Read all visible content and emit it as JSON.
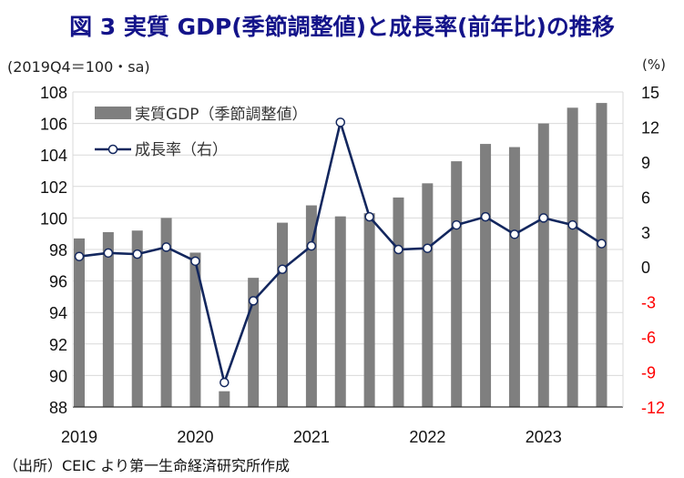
{
  "title": "図 3  実質 GDP(季節調整値)と成長率(前年比)の推移",
  "unit_left": "(2019Q4＝100・sa)",
  "unit_right": "(%)",
  "source": "（出所）CEIC より第一生命経済研究所作成",
  "colors": {
    "bar": "#7f7f7f",
    "line": "#13275e",
    "negative_tick": "#ff0000",
    "title": "#14148a"
  },
  "chart_data": {
    "type": "bar+line",
    "categories": [
      "2019Q1",
      "2019Q2",
      "2019Q3",
      "2019Q4",
      "2020Q1",
      "2020Q2",
      "2020Q3",
      "2020Q4",
      "2021Q1",
      "2021Q2",
      "2021Q3",
      "2021Q4",
      "2022Q1",
      "2022Q2",
      "2022Q3",
      "2022Q4",
      "2023Q1",
      "2023Q2",
      "2023Q3"
    ],
    "x_tick_labels": [
      "2019",
      "2020",
      "2021",
      "2022",
      "2023"
    ],
    "series": [
      {
        "name": "実質GDP（季節調整値）",
        "type": "bar",
        "axis": "left",
        "values": [
          98.7,
          99.1,
          99.2,
          100.0,
          97.8,
          89.0,
          96.2,
          99.7,
          100.8,
          100.1,
          100.3,
          101.3,
          102.2,
          103.6,
          104.7,
          104.5,
          106.0,
          107.0,
          107.3
        ]
      },
      {
        "name": "成長率（右）",
        "type": "line",
        "axis": "right",
        "values": [
          0.9,
          1.2,
          1.1,
          1.7,
          0.5,
          -9.9,
          -2.9,
          -0.2,
          1.8,
          12.4,
          4.3,
          1.5,
          1.6,
          3.6,
          4.3,
          2.8,
          4.2,
          3.6,
          2.0
        ]
      }
    ],
    "ylim_left": [
      88,
      108
    ],
    "yticks_left": [
      88,
      90,
      92,
      94,
      96,
      98,
      100,
      102,
      104,
      106,
      108
    ],
    "ylim_right": [
      -12,
      15
    ],
    "yticks_right": [
      -12,
      -9,
      -6,
      -3,
      0,
      3,
      6,
      9,
      12,
      15
    ],
    "grid": true,
    "legend_placement": "top-left"
  }
}
